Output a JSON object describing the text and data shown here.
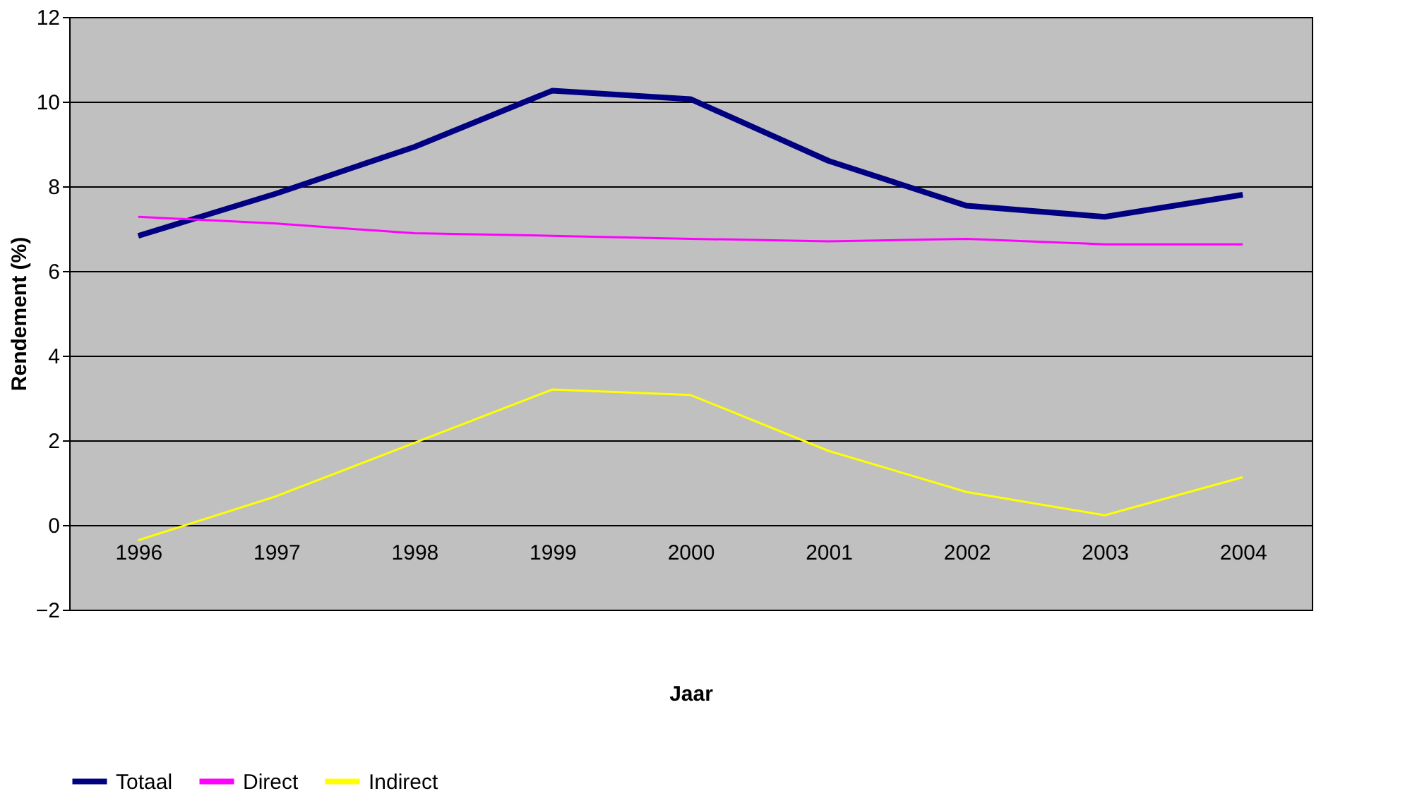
{
  "chart_data": {
    "type": "line",
    "xlabel": "Jaar",
    "ylabel": "Rendement (%)",
    "categories": [
      "1996",
      "1997",
      "1998",
      "1999",
      "2000",
      "2001",
      "2002",
      "2003",
      "2004"
    ],
    "series": [
      {
        "name": "Totaal",
        "color": "#000080",
        "values": [
          6.83,
          7.83,
          8.93,
          10.26,
          10.06,
          8.6,
          7.54,
          7.28,
          7.8
        ]
      },
      {
        "name": "Direct",
        "color": "#ff00ff",
        "values": [
          7.28,
          7.12,
          6.89,
          6.83,
          6.76,
          6.7,
          6.76,
          6.63,
          6.63
        ]
      },
      {
        "name": "Indirect",
        "color": "#ffff00",
        "values": [
          -0.36,
          0.68,
          1.94,
          3.2,
          3.07,
          1.75,
          0.78,
          0.23,
          1.13
        ]
      }
    ],
    "ylim": [
      -2,
      12
    ],
    "yticks": [
      -2,
      0,
      2,
      4,
      6,
      8,
      10,
      12
    ],
    "grid": "y",
    "legend": "bottom",
    "marker": "none",
    "line_style": "solid"
  }
}
